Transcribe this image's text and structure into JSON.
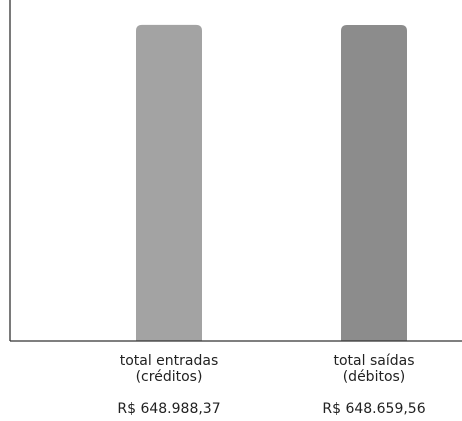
{
  "chart_data": {
    "type": "bar",
    "title": "",
    "xlabel": "",
    "ylabel": "",
    "categories": [
      [
        "total entradas",
        "(créditos)"
      ],
      [
        "total saídas",
        "(débitos)"
      ]
    ],
    "values": [
      648988.37,
      648659.56
    ],
    "value_labels": [
      "R$ 648.988,37",
      "R$ 648.659,56"
    ],
    "ylim": [
      0,
      700000
    ],
    "grid": false,
    "bar_colors": [
      "#a3a3a3",
      "#8c8c8c"
    ],
    "axis_color": "#333333"
  }
}
